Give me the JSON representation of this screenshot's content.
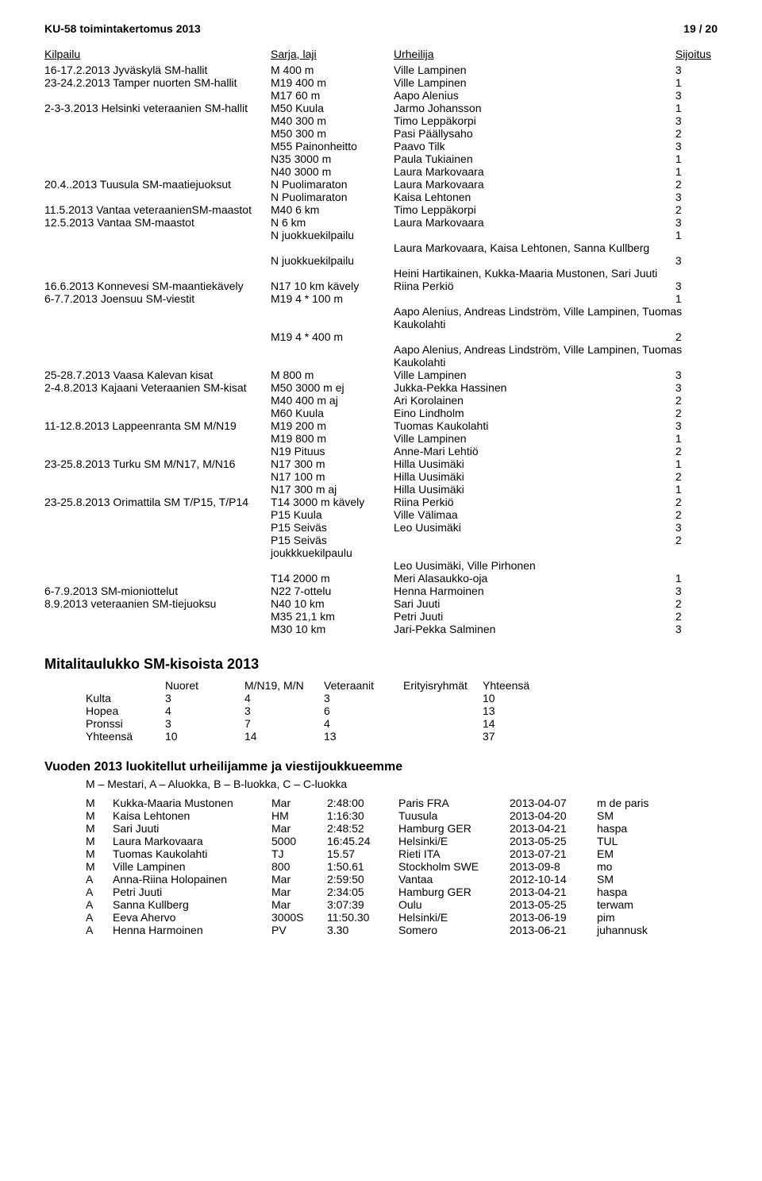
{
  "header": {
    "left": "KU-58  toimintakertomus 2013",
    "right": "19 / 20"
  },
  "results": {
    "columns": [
      "Kilpailu",
      "Sarja, laji",
      "Urheilija",
      "Sijoitus"
    ],
    "rows": [
      [
        "16-17.2.2013 Jyväskylä SM-hallit",
        "M 400 m",
        "Ville Lampinen",
        "3"
      ],
      [
        "23-24.2.2013 Tamper nuorten SM-hallit",
        "M19 400 m",
        "Ville Lampinen",
        "1"
      ],
      [
        "",
        "M17 60 m",
        "Aapo Alenius",
        "3"
      ],
      [
        "2-3-3.2013 Helsinki veteraanien SM-hallit",
        "M50 Kuula",
        "Jarmo Johansson",
        "1"
      ],
      [
        "",
        "M40 300 m",
        "Timo Leppäkorpi",
        "3"
      ],
      [
        "",
        "M50 300 m",
        "Pasi Päällysaho",
        "2"
      ],
      [
        "",
        "M55 Painonheitto",
        "Paavo Tilk",
        "3"
      ],
      [
        "",
        "N35 3000 m",
        "Paula Tukiainen",
        "1"
      ],
      [
        "",
        "N40 3000 m",
        "Laura Markovaara",
        "1"
      ],
      [
        "20.4..2013 Tuusula SM-maatiejuoksut",
        "N Puolimaraton",
        "Laura Markovaara",
        "2"
      ],
      [
        "",
        "N Puolimaraton",
        "Kaisa Lehtonen",
        "3"
      ],
      [
        "11.5.2013 Vantaa veteraanienSM-maastot",
        "M40 6 km",
        "Timo Leppäkorpi",
        "2"
      ],
      [
        "12.5.2013 Vantaa SM-maastot",
        "N 6 km",
        "Laura Markovaara",
        "3"
      ],
      [
        "",
        "N juokkuekilpailu",
        "",
        "1"
      ],
      [
        "",
        "",
        "Laura Markovaara, Kaisa Lehtonen, Sanna Kullberg",
        ""
      ],
      [
        "",
        "N juokkuekilpailu",
        "",
        "3"
      ],
      [
        "",
        "",
        "Heini Hartikainen, Kukka-Maaria Mustonen, Sari Juuti",
        ""
      ],
      [
        "16.6.2013 Konnevesi SM-maantiekävely",
        "N17 10 km kävely",
        "Riina Perkiö",
        "3"
      ],
      [
        "6-7.7.2013 Joensuu SM-viestit",
        "M19 4 * 100 m",
        "",
        "1"
      ],
      [
        "",
        "",
        "Aapo Alenius, Andreas Lindström, Ville Lampinen, Tuomas Kaukolahti",
        ""
      ],
      [
        "",
        "M19 4 * 400 m",
        "",
        "2"
      ],
      [
        "",
        "",
        "Aapo Alenius, Andreas Lindström, Ville Lampinen, Tuomas Kaukolahti",
        ""
      ],
      [
        "25-28.7.2013 Vaasa Kalevan kisat",
        "M 800 m",
        "Ville Lampinen",
        "3"
      ],
      [
        "2-4.8.2013 Kajaani Veteraanien SM-kisat",
        "M50 3000 m ej",
        "Jukka-Pekka Hassinen",
        "3"
      ],
      [
        "",
        "M40 400 m aj",
        "Ari Korolainen",
        "2"
      ],
      [
        "",
        "M60 Kuula",
        "Eino Lindholm",
        "2"
      ],
      [
        "11-12.8.2013 Lappeenranta SM M/N19",
        "M19 200 m",
        "Tuomas Kaukolahti",
        "3"
      ],
      [
        "",
        "M19 800 m",
        "Ville Lampinen",
        "1"
      ],
      [
        "",
        "N19 Pituus",
        "Anne-Mari Lehtiö",
        "2"
      ],
      [
        "23-25.8.2013 Turku SM M/N17, M/N16",
        "N17 300 m",
        "Hilla Uusimäki",
        "1"
      ],
      [
        "",
        "N17 100 m",
        "Hilla Uusimäki",
        "2"
      ],
      [
        "",
        "N17 300 m aj",
        "Hilla Uusimäki",
        "1"
      ],
      [
        "23-25.8.2013 Orimattila SM T/P15, T/P14",
        "T14 3000 m kävely",
        "Riina Perkiö",
        "2"
      ],
      [
        "",
        "P15 Kuula",
        "Ville Välimaa",
        "2"
      ],
      [
        "",
        "P15 Seiväs",
        "Leo Uusimäki",
        "3"
      ],
      [
        "",
        "P15 Seiväs joukkkuekilpaulu",
        "",
        "2"
      ],
      [
        "",
        "",
        "Leo Uusimäki, Ville Pirhonen",
        ""
      ],
      [
        "",
        "T14 2000 m",
        "Meri Alasaukko-oja",
        "1"
      ],
      [
        "6-7.9.2013 SM-mioniottelut",
        "N22 7-ottelu",
        "Henna Harmoinen",
        "3"
      ],
      [
        "8.9.2013 veteraanien SM-tiejuoksu",
        "N40 10 km",
        "Sari Juuti",
        "2"
      ],
      [
        "",
        "M35 21,1 km",
        "Petri Juuti",
        "2"
      ],
      [
        "",
        "M30 10 km",
        "Jari-Pekka Salminen",
        "3"
      ]
    ]
  },
  "medals": {
    "title": "Mitalitaulukko SM-kisoista 2013",
    "columns": [
      "",
      "Nuoret",
      "M/N19, M/N",
      "Veteraanit",
      "Erityisryhmät",
      "Yhteensä"
    ],
    "rows": [
      [
        "Kulta",
        "3",
        "4",
        "3",
        "",
        "10"
      ],
      [
        "Hopea",
        "4",
        "3",
        "6",
        "",
        "13"
      ],
      [
        "Pronssi",
        "3",
        "7",
        "4",
        "",
        "14"
      ],
      [
        "Yhteensä",
        "10",
        "14",
        "13",
        "",
        "37"
      ]
    ]
  },
  "ranked": {
    "title": "Vuoden 2013 luokitellut urheilijamme ja viestijoukkueemme",
    "subtitle": "M – Mestari, A – Aluokka, B – B-luokka, C – C-luokka",
    "rows": [
      [
        "M",
        "Kukka-Maaria Mustonen",
        "Mar",
        "2:48:00",
        "Paris FRA",
        "2013-04-07",
        "m de paris"
      ],
      [
        "M",
        "Kaisa Lehtonen",
        "HM",
        "1:16:30",
        "Tuusula",
        "2013-04-20",
        "SM"
      ],
      [
        "M",
        "Sari Juuti",
        "Mar",
        "2:48:52",
        "Hamburg GER",
        "2013-04-21",
        "haspa"
      ],
      [
        "M",
        "Laura Markovaara",
        "5000",
        "16:45.24",
        "Helsinki/E",
        "2013-05-25",
        "TUL"
      ],
      [
        "M",
        "Tuomas Kaukolahti",
        "TJ",
        "15.57",
        "Rieti ITA",
        "2013-07-21",
        "EM"
      ],
      [
        "M",
        "Ville Lampinen",
        "800",
        "1:50.61",
        "Stockholm SWE",
        "2013-09-8",
        "mo"
      ],
      [
        "A",
        "Anna-Riina Holopainen",
        "Mar",
        "2:59:50",
        "Vantaa",
        "2012-10-14",
        "SM"
      ],
      [
        "A",
        "Petri Juuti",
        "Mar",
        "2:34:05",
        "Hamburg GER",
        "2013-04-21",
        "haspa"
      ],
      [
        "A",
        "Sanna Kullberg",
        "Mar",
        "3:07:39",
        "Oulu",
        "2013-05-25",
        "terwam"
      ],
      [
        "A",
        "Eeva Ahervo",
        "3000S",
        "11:50.30",
        "Helsinki/E",
        "2013-06-19",
        "pim"
      ],
      [
        "A",
        "Henna Harmoinen",
        "PV",
        "3.30",
        "Somero",
        "2013-06-21",
        "juhannusk"
      ]
    ]
  }
}
